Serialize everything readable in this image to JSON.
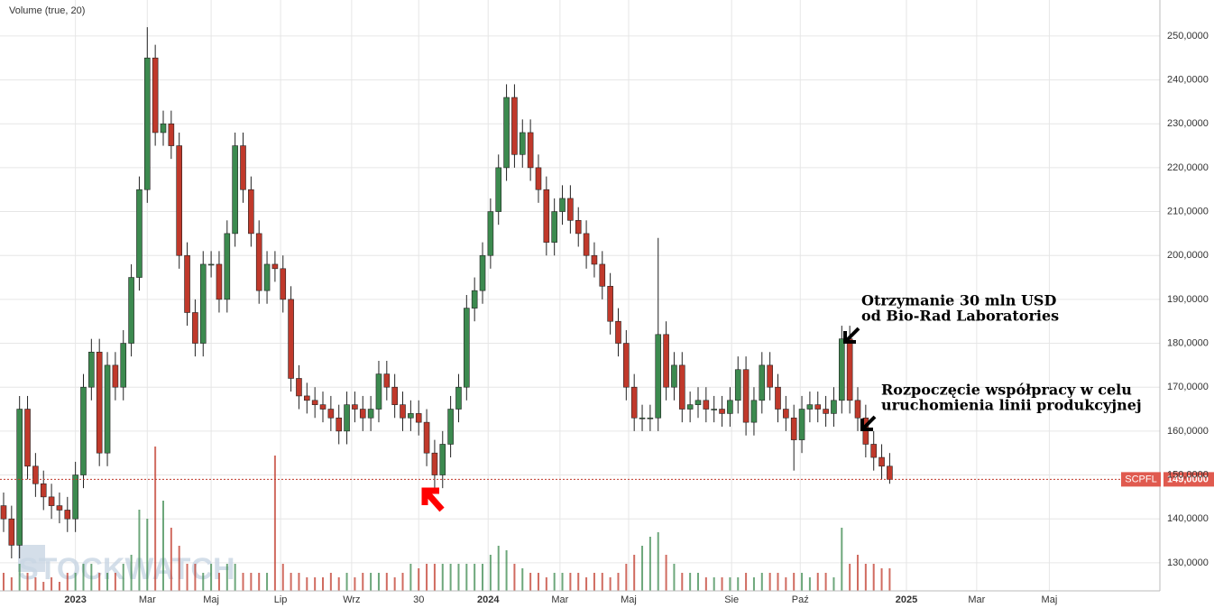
{
  "chart_data": {
    "type": "candlestick",
    "indicator_label": "Volume (true, 20)",
    "watermark": "STOCKWATCH",
    "ylim": [
      123.6,
      258.2
    ],
    "yticks": [
      {
        "value": 130,
        "label": "130,0000"
      },
      {
        "value": 140,
        "label": "140,0000"
      },
      {
        "value": 150,
        "label": "150,0000"
      },
      {
        "value": 160,
        "label": "160,0000"
      },
      {
        "value": 170,
        "label": "170,0000"
      },
      {
        "value": 180,
        "label": "180,0000"
      },
      {
        "value": 190,
        "label": "190,0000"
      },
      {
        "value": 200,
        "label": "200,0000"
      },
      {
        "value": 210,
        "label": "210,0000"
      },
      {
        "value": 220,
        "label": "220,0000"
      },
      {
        "value": 230,
        "label": "230,0000"
      },
      {
        "value": 240,
        "label": "240,0000"
      },
      {
        "value": 250,
        "label": "250,0000"
      }
    ],
    "xlim": [
      -0.45,
      144.85
    ],
    "xticks": [
      {
        "value": 9.0,
        "label": "2023"
      },
      {
        "value": 18.0,
        "label": "Mar"
      },
      {
        "value": 26.0,
        "label": "Maj"
      },
      {
        "value": 34.7,
        "label": "Lip"
      },
      {
        "value": 43.6,
        "label": "Wrz"
      },
      {
        "value": 52.0,
        "label": "30"
      },
      {
        "value": 60.7,
        "label": "2024"
      },
      {
        "value": 69.7,
        "label": "Mar"
      },
      {
        "value": 78.3,
        "label": "Maj"
      },
      {
        "value": 91.2,
        "label": "Sie"
      },
      {
        "value": 99.8,
        "label": "Paź"
      },
      {
        "value": 113.1,
        "label": "2025"
      },
      {
        "value": 121.9,
        "label": "Mar"
      },
      {
        "value": 131.0,
        "label": "Maj"
      }
    ],
    "grid": true,
    "up_color": "#3c8a4f",
    "down_color": "#c0392b",
    "open": [
      143,
      140,
      134,
      165,
      152,
      148,
      145,
      143,
      142,
      140,
      150,
      170,
      178,
      155,
      175,
      170,
      180,
      195,
      215,
      245,
      228,
      230,
      225,
      200,
      187,
      180,
      198,
      198,
      190,
      205,
      225,
      215,
      205,
      192,
      198,
      197,
      190,
      172,
      168,
      167,
      166,
      165,
      163,
      160,
      166,
      165,
      163,
      165,
      173,
      170,
      166,
      163,
      164,
      162,
      155,
      150,
      157,
      165,
      170,
      188,
      192,
      200,
      210,
      220,
      236,
      223,
      228,
      220,
      215,
      203,
      210,
      213,
      208,
      205,
      200,
      198,
      193,
      185,
      180,
      170,
      163,
      163,
      163,
      182,
      170,
      175,
      165,
      166,
      167,
      165,
      165,
      164,
      167,
      174,
      162,
      167,
      175,
      170,
      165,
      163,
      158,
      165,
      166,
      165,
      164,
      167,
      181,
      167,
      163,
      157,
      154,
      152
    ],
    "high": [
      146,
      143,
      168,
      168,
      155,
      151,
      148,
      146,
      145,
      153,
      173,
      181,
      181,
      178,
      178,
      183,
      198,
      218,
      252,
      248,
      233,
      233,
      228,
      203,
      190,
      201,
      201,
      201,
      208,
      228,
      228,
      218,
      208,
      201,
      201,
      200,
      193,
      175,
      171,
      170,
      169,
      168,
      166,
      169,
      169,
      168,
      168,
      176,
      176,
      173,
      169,
      167,
      167,
      165,
      158,
      160,
      168,
      173,
      191,
      195,
      203,
      213,
      223,
      239,
      239,
      231,
      231,
      223,
      218,
      213,
      216,
      216,
      211,
      208,
      203,
      201,
      196,
      188,
      183,
      173,
      166,
      166,
      204,
      185,
      178,
      178,
      169,
      170,
      170,
      168,
      168,
      170,
      177,
      177,
      170,
      178,
      178,
      173,
      168,
      166,
      168,
      169,
      169,
      168,
      170,
      184,
      184,
      170,
      166,
      160,
      157,
      155
    ],
    "low": [
      137,
      131,
      131,
      149,
      145,
      142,
      140,
      139,
      137,
      137,
      147,
      167,
      152,
      152,
      167,
      167,
      177,
      192,
      212,
      225,
      225,
      222,
      197,
      184,
      177,
      177,
      195,
      187,
      187,
      202,
      212,
      202,
      189,
      189,
      194,
      187,
      169,
      165,
      164,
      163,
      162,
      160,
      157,
      157,
      162,
      160,
      160,
      162,
      167,
      163,
      160,
      160,
      159,
      152,
      147,
      147,
      154,
      162,
      167,
      185,
      189,
      197,
      207,
      217,
      220,
      220,
      217,
      212,
      200,
      200,
      207,
      205,
      202,
      197,
      195,
      190,
      182,
      177,
      167,
      160,
      160,
      160,
      160,
      167,
      167,
      162,
      162,
      163,
      162,
      162,
      161,
      161,
      164,
      159,
      159,
      164,
      167,
      162,
      160,
      151,
      155,
      162,
      162,
      161,
      161,
      164,
      164,
      160,
      154,
      151,
      149,
      148
    ],
    "close": [
      140,
      134,
      165,
      152,
      148,
      145,
      143,
      142,
      140,
      150,
      170,
      178,
      155,
      175,
      170,
      180,
      195,
      215,
      245,
      228,
      230,
      225,
      200,
      187,
      180,
      198,
      198,
      190,
      205,
      225,
      215,
      205,
      192,
      198,
      197,
      190,
      172,
      168,
      167,
      166,
      165,
      163,
      160,
      166,
      165,
      163,
      165,
      173,
      170,
      166,
      163,
      164,
      162,
      155,
      150,
      157,
      165,
      170,
      188,
      192,
      200,
      210,
      220,
      236,
      223,
      228,
      220,
      215,
      203,
      210,
      213,
      208,
      205,
      200,
      198,
      193,
      185,
      180,
      170,
      163,
      163,
      163,
      182,
      170,
      175,
      165,
      166,
      167,
      165,
      165,
      164,
      167,
      174,
      162,
      167,
      175,
      170,
      165,
      163,
      158,
      165,
      166,
      165,
      164,
      167,
      181,
      167,
      163,
      157,
      154,
      152,
      149
    ],
    "volume": [
      2,
      1.5,
      3,
      2,
      1.5,
      1,
      1.5,
      1,
      2,
      2,
      3,
      3,
      2,
      2,
      2,
      3,
      4,
      9,
      8,
      16,
      10,
      7,
      5,
      3,
      3,
      2,
      3,
      2,
      3,
      3,
      2,
      2,
      2,
      2,
      15,
      3,
      2,
      2,
      1.5,
      1.5,
      1.5,
      2,
      1.5,
      2,
      1.5,
      2,
      2,
      2,
      2,
      1.5,
      2,
      3,
      2.5,
      3,
      3,
      3,
      3,
      3,
      3,
      3,
      3,
      4,
      5,
      4.5,
      3,
      2.5,
      2,
      2,
      1.5,
      2,
      2,
      2,
      2,
      1.5,
      2,
      2,
      1.5,
      2,
      3,
      4,
      5,
      6,
      6.5,
      4,
      3,
      2,
      2,
      2,
      1.5,
      1.5,
      1.5,
      1.5,
      1.5,
      2,
      1.5,
      2,
      2,
      2,
      1.5,
      2,
      2,
      1.5,
      2,
      2,
      1.5,
      7,
      3,
      4,
      3,
      3,
      2.5,
      2.5
    ],
    "volume_lim": [
      0,
      17
    ],
    "last_price": {
      "symbol": "SCPFL",
      "value": 149,
      "label": "149,0000"
    },
    "annotations": [
      {
        "lines": [
          "Otrzymanie 30 mln USD",
          "od Bio-Rad Laboratories"
        ]
      },
      {
        "lines": [
          "Rozpoczęcie współpracy w celu",
          "uruchomienia linii produkcyjnej"
        ]
      }
    ]
  }
}
